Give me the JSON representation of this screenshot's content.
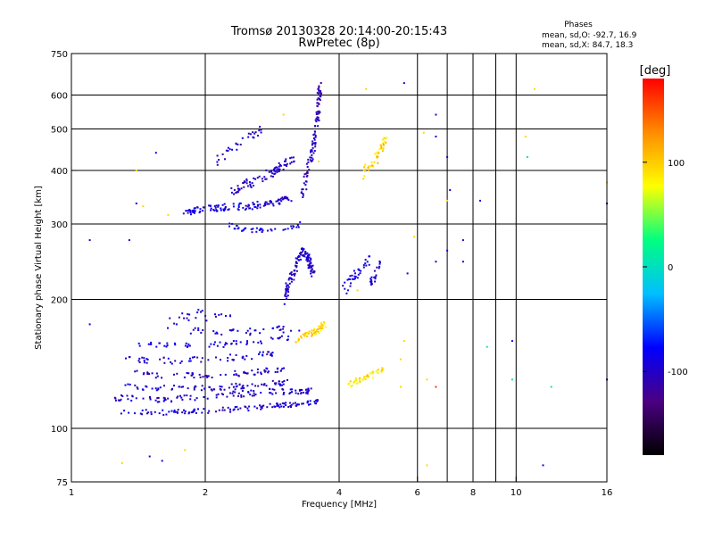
{
  "chart_data": {
    "type": "scatter",
    "title": "Tromsø 20130328 20:14:00-20:15:43",
    "subtitle": "RwPretec (8p)",
    "xlabel": "Frequency [MHz]",
    "ylabel": "Stationary phase Virtual Height [km]",
    "x_scale": "log",
    "y_scale": "log",
    "xlim": [
      1,
      16
    ],
    "ylim": [
      75,
      750
    ],
    "x_ticks": [
      1,
      2,
      4,
      6,
      8,
      10,
      16
    ],
    "x_tick_labels": [
      "1",
      "2",
      "4",
      "6",
      "8",
      "10",
      "16"
    ],
    "y_ticks": [
      75,
      100,
      200,
      300,
      400,
      500,
      600,
      750
    ],
    "y_tick_labels": [
      "75",
      "100",
      "200",
      "300",
      "400",
      "500",
      "600",
      "750"
    ],
    "grid": true,
    "x_grid": [
      2,
      4,
      6,
      7,
      8,
      9,
      10
    ],
    "y_grid": [
      100,
      200,
      300,
      400,
      500,
      600
    ],
    "stats": {
      "title": "Phases",
      "line_o": "mean, sd,O: -92.7, 16.9",
      "line_x": "mean, sd,X:  84.7, 18.3"
    },
    "colorbar": {
      "label": "[deg]",
      "range": [
        -180,
        180
      ],
      "ticks": [
        100,
        0,
        -100
      ],
      "tick_labels": [
        "100",
        "0",
        "-100"
      ],
      "colors": [
        "#000000",
        "#4b0082",
        "#0000ff",
        "#00bfff",
        "#00ff80",
        "#ffff00",
        "#ff8c00",
        "#ff0000"
      ]
    },
    "traces": [
      {
        "x": [
          1.27,
          1.6,
          2.0,
          2.4,
          2.9,
          3.3,
          3.6
        ],
        "y": [
          109,
          109,
          110,
          111,
          113,
          114,
          116
        ],
        "phase": -95,
        "spread": 1.5,
        "count": 120
      },
      {
        "x": [
          1.25,
          1.55,
          1.9,
          2.3,
          2.8,
          3.2,
          3.45
        ],
        "y": [
          118,
          117,
          118,
          120,
          122,
          122,
          122
        ],
        "phase": -98,
        "spread": 2,
        "count": 110
      },
      {
        "x": [
          1.3,
          1.6,
          1.95,
          2.3,
          2.7,
          3.1
        ],
        "y": [
          126,
          124,
          124,
          125,
          127,
          128
        ],
        "phase": -100,
        "spread": 2,
        "count": 80
      },
      {
        "x": [
          1.35,
          1.6,
          1.9,
          2.3,
          2.7,
          3.0
        ],
        "y": [
          135,
          133,
          133,
          134,
          136,
          137
        ],
        "phase": -100,
        "spread": 2,
        "count": 70
      },
      {
        "x": [
          1.3,
          1.5,
          1.8,
          2.2,
          2.6,
          2.9
        ],
        "y": [
          146,
          144,
          144,
          146,
          148,
          150
        ],
        "phase": -95,
        "spread": 2.5,
        "count": 60
      },
      {
        "x": [
          1.4,
          1.7,
          2.0,
          2.4,
          2.8,
          3.1
        ],
        "y": [
          158,
          156,
          156,
          158,
          160,
          163
        ],
        "phase": -90,
        "spread": 2.5,
        "count": 55
      },
      {
        "x": [
          1.8,
          2.1,
          2.5,
          2.9,
          3.3
        ],
        "y": [
          170,
          168,
          168,
          170,
          172
        ],
        "phase": -95,
        "spread": 3,
        "count": 40
      },
      {
        "x": [
          3.0,
          3.1,
          3.2,
          3.3,
          3.4,
          3.5
        ],
        "y": [
          200,
          220,
          240,
          260,
          250,
          230
        ],
        "phase": -100,
        "spread": 6,
        "count": 120
      },
      {
        "x": [
          3.2,
          3.4,
          3.6,
          3.7
        ],
        "y": [
          160,
          165,
          170,
          175
        ],
        "phase": 95,
        "spread": 3,
        "count": 50
      },
      {
        "x": [
          4.2,
          4.5,
          4.8,
          5.0
        ],
        "y": [
          127,
          130,
          134,
          138
        ],
        "phase": 90,
        "spread": 2,
        "count": 40
      },
      {
        "x": [
          4.1,
          4.4,
          4.7
        ],
        "y": [
          210,
          230,
          250
        ],
        "phase": -90,
        "spread": 6,
        "count": 35
      },
      {
        "x": [
          4.7,
          5.0
        ],
        "y": [
          215,
          245
        ],
        "phase": -95,
        "spread": 6,
        "count": 20
      },
      {
        "x": [
          1.8,
          2.0,
          2.2,
          2.5,
          2.8,
          3.1
        ],
        "y": [
          320,
          325,
          328,
          330,
          335,
          345
        ],
        "phase": -95,
        "spread": 6,
        "count": 120
      },
      {
        "x": [
          2.2,
          2.5,
          2.8,
          3.1,
          3.3
        ],
        "y": [
          300,
          290,
          290,
          295,
          300
        ],
        "phase": -90,
        "spread": 4,
        "count": 40
      },
      {
        "x": [
          2.3,
          2.6,
          2.9,
          3.2
        ],
        "y": [
          360,
          380,
          400,
          430
        ],
        "phase": -100,
        "spread": 10,
        "count": 80
      },
      {
        "x": [
          3.3,
          3.4,
          3.5,
          3.55,
          3.6,
          3.62
        ],
        "y": [
          350,
          400,
          450,
          500,
          560,
          630
        ],
        "phase": -105,
        "spread": 12,
        "count": 100
      },
      {
        "x": [
          2.1,
          2.3,
          2.5,
          2.7
        ],
        "y": [
          420,
          450,
          480,
          500
        ],
        "phase": -95,
        "spread": 10,
        "count": 30
      },
      {
        "x": [
          4.5,
          4.8,
          5.0,
          5.1
        ],
        "y": [
          390,
          420,
          450,
          480
        ],
        "phase": 95,
        "spread": 10,
        "count": 45
      },
      {
        "x": [
          1.6,
          1.9,
          2.3
        ],
        "y": [
          175,
          185,
          180
        ],
        "phase": -95,
        "spread": 5,
        "count": 25
      }
    ],
    "points": [
      {
        "x": 1.1,
        "y": 175,
        "phase": -95
      },
      {
        "x": 1.1,
        "y": 275,
        "phase": -95
      },
      {
        "x": 1.35,
        "y": 275,
        "phase": -95
      },
      {
        "x": 1.4,
        "y": 335,
        "phase": -95
      },
      {
        "x": 1.55,
        "y": 440,
        "phase": -95
      },
      {
        "x": 1.65,
        "y": 315,
        "phase": 95
      },
      {
        "x": 1.5,
        "y": 86,
        "phase": -95
      },
      {
        "x": 1.6,
        "y": 84,
        "phase": -95
      },
      {
        "x": 1.8,
        "y": 89,
        "phase": 95
      },
      {
        "x": 1.3,
        "y": 83,
        "phase": 95
      },
      {
        "x": 1.4,
        "y": 400,
        "phase": 95
      },
      {
        "x": 3.0,
        "y": 540,
        "phase": 95
      },
      {
        "x": 4.6,
        "y": 620,
        "phase": 95
      },
      {
        "x": 5.6,
        "y": 640,
        "phase": -95
      },
      {
        "x": 6.2,
        "y": 490,
        "phase": 95
      },
      {
        "x": 6.6,
        "y": 540,
        "phase": -95
      },
      {
        "x": 6.6,
        "y": 480,
        "phase": -95
      },
      {
        "x": 7.0,
        "y": 430,
        "phase": -95
      },
      {
        "x": 7.0,
        "y": 340,
        "phase": 95
      },
      {
        "x": 7.1,
        "y": 360,
        "phase": -95
      },
      {
        "x": 8.3,
        "y": 340,
        "phase": -95
      },
      {
        "x": 10.5,
        "y": 480,
        "phase": 95
      },
      {
        "x": 10.6,
        "y": 430,
        "phase": 10
      },
      {
        "x": 11.0,
        "y": 620,
        "phase": 95
      },
      {
        "x": 6.6,
        "y": 245,
        "phase": -95
      },
      {
        "x": 7.0,
        "y": 260,
        "phase": -95
      },
      {
        "x": 7.6,
        "y": 275,
        "phase": -95
      },
      {
        "x": 7.6,
        "y": 245,
        "phase": -95
      },
      {
        "x": 8.6,
        "y": 155,
        "phase": 10
      },
      {
        "x": 9.8,
        "y": 130,
        "phase": 10
      },
      {
        "x": 9.8,
        "y": 160,
        "phase": -95
      },
      {
        "x": 12.0,
        "y": 125,
        "phase": 10
      },
      {
        "x": 11.5,
        "y": 82,
        "phase": -95
      },
      {
        "x": 16.0,
        "y": 130,
        "phase": -95
      },
      {
        "x": 16.0,
        "y": 335,
        "phase": -95
      },
      {
        "x": 16.0,
        "y": 375,
        "phase": 95
      },
      {
        "x": 6.3,
        "y": 130,
        "phase": 95
      },
      {
        "x": 6.6,
        "y": 125,
        "phase": 160
      },
      {
        "x": 6.3,
        "y": 82,
        "phase": 95
      },
      {
        "x": 5.6,
        "y": 160,
        "phase": 95
      },
      {
        "x": 5.5,
        "y": 145,
        "phase": 95
      },
      {
        "x": 5.5,
        "y": 125,
        "phase": 95
      },
      {
        "x": 5.9,
        "y": 280,
        "phase": 95
      },
      {
        "x": 5.7,
        "y": 230,
        "phase": -95
      },
      {
        "x": 1.45,
        "y": 330,
        "phase": 95
      },
      {
        "x": 3.6,
        "y": 420,
        "phase": 95
      },
      {
        "x": 4.4,
        "y": 210,
        "phase": 95
      }
    ]
  }
}
